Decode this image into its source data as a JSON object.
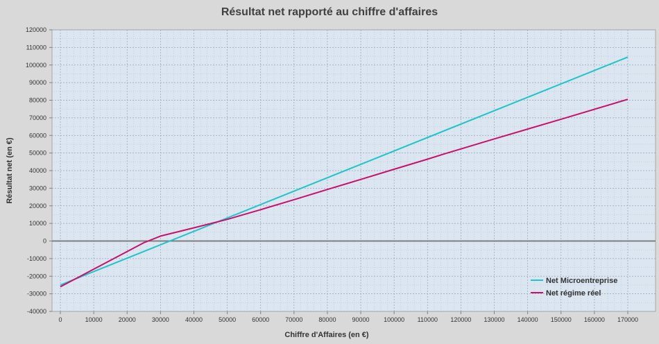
{
  "chart_data": {
    "type": "line",
    "title": "Résultat net rapporté au chiffre d'affaires",
    "xlabel": "Chiffre d'Affaires  (en €)",
    "ylabel": "Résultat net (en €)",
    "xlim": [
      0,
      170000
    ],
    "ylim": [
      -40000,
      120000
    ],
    "x_ticks": [
      0,
      10000,
      20000,
      30000,
      40000,
      50000,
      60000,
      70000,
      80000,
      90000,
      100000,
      110000,
      120000,
      130000,
      140000,
      150000,
      160000,
      170000
    ],
    "y_ticks": [
      -40000,
      -30000,
      -20000,
      -10000,
      0,
      10000,
      20000,
      30000,
      40000,
      50000,
      60000,
      70000,
      80000,
      90000,
      100000,
      110000,
      120000
    ],
    "grid": true,
    "legend_position": "bottom-right",
    "series": [
      {
        "name": "Net Microentreprise",
        "color": "#1fc3c9",
        "points": [
          [
            0,
            -25000
          ],
          [
            170000,
            104500
          ]
        ]
      },
      {
        "name": "Net régime réel",
        "color": "#c8106b",
        "points": [
          [
            0,
            -26000
          ],
          [
            25000,
            -1000
          ],
          [
            30000,
            2800
          ],
          [
            40000,
            7500
          ],
          [
            50000,
            12300
          ],
          [
            60000,
            17800
          ],
          [
            70000,
            23500
          ],
          [
            80000,
            29300
          ],
          [
            90000,
            35000
          ],
          [
            100000,
            40800
          ],
          [
            110000,
            46500
          ],
          [
            115000,
            49500
          ],
          [
            130000,
            58000
          ],
          [
            150000,
            69200
          ],
          [
            170000,
            80500
          ]
        ]
      }
    ]
  }
}
